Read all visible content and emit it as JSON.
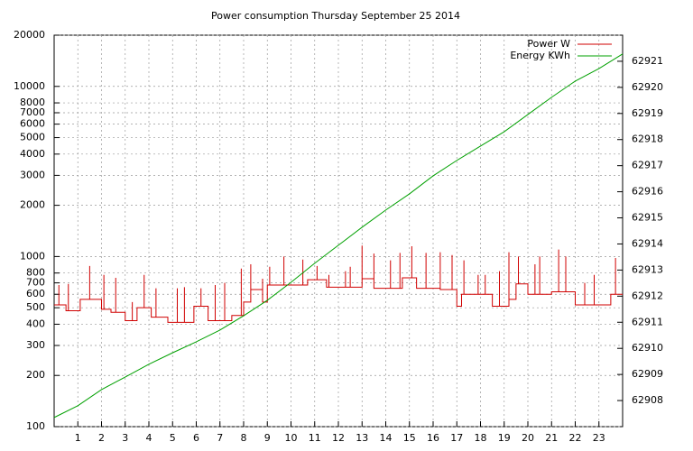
{
  "chart_data": {
    "type": "line",
    "title": "Power consumption Thursday September 25 2014",
    "xlim": [
      0,
      24
    ],
    "xticks": [
      1,
      2,
      3,
      4,
      5,
      6,
      7,
      8,
      9,
      10,
      11,
      12,
      13,
      14,
      15,
      16,
      17,
      18,
      19,
      20,
      21,
      22,
      23
    ],
    "ylim": [
      100,
      20000
    ],
    "log_y": true,
    "yticks": [
      100,
      200,
      300,
      400,
      500,
      600,
      700,
      800,
      1000,
      2000,
      3000,
      4000,
      5000,
      6000,
      7000,
      8000,
      10000,
      20000
    ],
    "y2lim": [
      62907,
      62922
    ],
    "y2ticks": [
      62908,
      62909,
      62910,
      62911,
      62912,
      62913,
      62914,
      62915,
      62916,
      62917,
      62918,
      62919,
      62920,
      62921
    ],
    "grid": true,
    "legend": "top-right",
    "series": [
      {
        "name": "Power W",
        "color": "#d00000",
        "x": [
          0,
          0.2,
          0.2,
          0.2,
          0.5,
          0.5,
          0.6,
          0.6,
          0.6,
          1.1,
          1.1,
          1.5,
          1.5,
          1.5,
          2,
          2,
          2.1,
          2.1,
          2.1,
          2.4,
          2.4,
          2.6,
          2.6,
          2.6,
          3,
          3,
          3.3,
          3.3,
          3.3,
          3.5,
          3.5,
          3.8,
          3.8,
          3.8,
          4.1,
          4.1,
          4.3,
          4.3,
          4.3,
          4.8,
          4.8,
          5.2,
          5.2,
          5.2,
          5.5,
          5.5,
          5.5,
          5.9,
          5.9,
          6.2,
          6.2,
          6.2,
          6.5,
          6.5,
          6.8,
          6.8,
          6.8,
          7.2,
          7.2,
          7.2,
          7.5,
          7.5,
          7.9,
          7.9,
          7.9,
          8,
          8,
          8.3,
          8.3,
          8.3,
          8.8,
          8.8,
          8.8,
          9,
          9,
          9.1,
          9.1,
          9.1,
          9.7,
          9.7,
          9.7,
          10.5,
          10.5,
          10.5,
          10.7,
          10.7,
          11.1,
          11.1,
          11.1,
          11.5,
          11.5,
          11.6,
          11.6,
          11.6,
          12.3,
          12.3,
          12.3,
          12.5,
          12.5,
          12.5,
          13,
          13,
          13,
          13.5,
          13.5,
          13.5,
          14.2,
          14.2,
          14.2,
          14.6,
          14.6,
          14.6,
          14.7,
          14.7,
          15.1,
          15.1,
          15.1,
          15.3,
          15.3,
          15.7,
          15.7,
          15.7,
          16.3,
          16.3,
          16.3,
          16.8,
          16.8,
          16.8,
          17,
          17,
          17.2,
          17.2,
          17.3,
          17.3,
          17.3,
          17.9,
          17.9,
          17.9,
          18.2,
          18.2,
          18.2,
          18.5,
          18.5,
          18.8,
          18.8,
          18.8,
          19.2,
          19.2,
          19.2,
          19.5,
          19.5,
          19.6,
          19.6,
          19.6,
          20,
          20,
          20.3,
          20.3,
          20.3,
          20.5,
          20.5,
          20.5,
          21,
          21,
          21.3,
          21.3,
          21.3,
          21.6,
          21.6,
          21.6,
          22,
          22,
          22.4,
          22.4,
          22.4,
          22.8,
          22.8,
          22.8,
          23.5,
          23.5,
          23.7,
          23.7,
          23.7,
          24
        ],
        "values": [
          520,
          520,
          680,
          520,
          520,
          480,
          480,
          690,
          480,
          480,
          560,
          560,
          880,
          560,
          560,
          490,
          490,
          780,
          490,
          490,
          470,
          470,
          750,
          470,
          470,
          420,
          420,
          540,
          420,
          420,
          500,
          500,
          780,
          500,
          500,
          440,
          440,
          650,
          440,
          440,
          410,
          410,
          650,
          410,
          410,
          660,
          410,
          410,
          510,
          510,
          650,
          510,
          510,
          420,
          420,
          680,
          420,
          420,
          700,
          420,
          420,
          450,
          450,
          850,
          450,
          450,
          540,
          540,
          900,
          640,
          640,
          740,
          540,
          540,
          680,
          680,
          870,
          680,
          680,
          1000,
          680,
          680,
          960,
          680,
          680,
          730,
          730,
          880,
          730,
          730,
          660,
          660,
          780,
          660,
          660,
          820,
          660,
          660,
          870,
          660,
          660,
          1160,
          740,
          740,
          1040,
          650,
          650,
          950,
          650,
          650,
          1050,
          650,
          650,
          750,
          750,
          1150,
          750,
          750,
          650,
          650,
          1050,
          650,
          650,
          1060,
          640,
          640,
          1020,
          640,
          640,
          510,
          510,
          600,
          600,
          950,
          600,
          600,
          780,
          600,
          600,
          780,
          600,
          600,
          510,
          510,
          820,
          510,
          510,
          1060,
          560,
          560,
          690,
          690,
          1000,
          690,
          690,
          600,
          600,
          900,
          600,
          600,
          1000,
          600,
          600,
          620,
          620,
          1100,
          620,
          620,
          1000,
          620,
          620,
          520,
          520,
          700,
          520,
          520,
          780,
          520,
          520,
          600,
          600,
          980,
          600,
          600
        ]
      },
      {
        "name": "Energy KWh",
        "color": "#00a000",
        "axis": "y2",
        "x": [
          0,
          1,
          2,
          3,
          4,
          5,
          6,
          7,
          8,
          9,
          10,
          11,
          12,
          13,
          14,
          15,
          16,
          17,
          18,
          19,
          20,
          21,
          22,
          23,
          24
        ],
        "values": [
          62907.35,
          62907.8,
          62908.42,
          62908.9,
          62909.39,
          62909.83,
          62910.25,
          62910.7,
          62911.25,
          62911.84,
          62912.53,
          62913.26,
          62913.95,
          62914.64,
          62915.3,
          62915.92,
          62916.61,
          62917.2,
          62917.75,
          62918.3,
          62918.96,
          62919.62,
          62920.24,
          62920.72,
          62921.28
        ]
      }
    ]
  }
}
